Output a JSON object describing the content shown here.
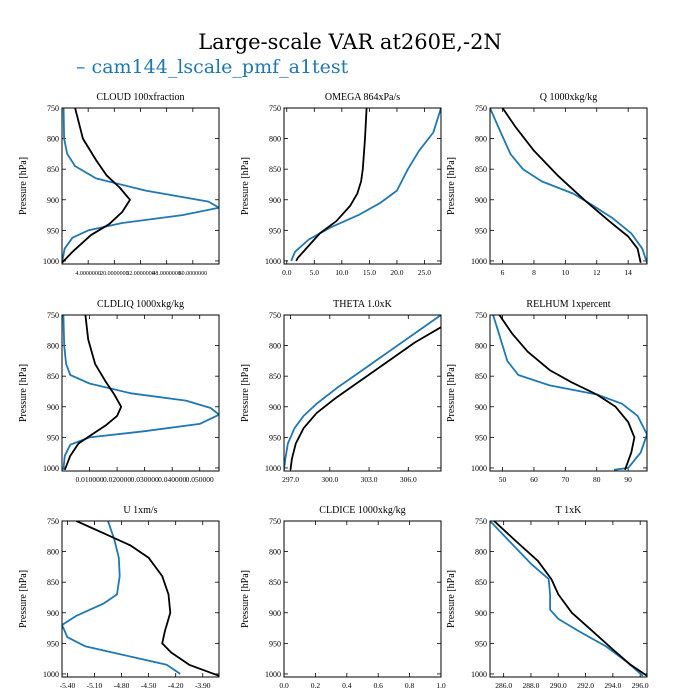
{
  "figure": {
    "title": "Large-scale VAR at260E,-2N",
    "legend": [
      {
        "label": "cam144_lscale_pmf_a1test",
        "color": "#1f77b4"
      }
    ],
    "ref_color": "#000000"
  },
  "chart_data": [
    {
      "type": "line",
      "title": "CLOUD  100xfraction",
      "ylabel": "Pressure [hPa]",
      "ylim": [
        1005,
        750
      ],
      "yticks": [
        750,
        800,
        850,
        900,
        950,
        1000
      ],
      "xlim": [
        0.0,
        6.0
      ],
      "xticks": [
        1.0,
        2.0,
        3.0,
        4.0,
        5.0
      ],
      "xtick_labels": [
        "4.0000000",
        "20.0000000",
        "32.0000000",
        "48.0000000",
        "60.0000000"
      ],
      "xtick_label_size": 6,
      "series": [
        {
          "name": "cam144_lscale_pmf_a1test",
          "color": "#1f77b4",
          "points": [
            [
              0.06,
              750
            ],
            [
              0.08,
              800
            ],
            [
              0.2,
              825
            ],
            [
              0.5,
              845
            ],
            [
              1.3,
              865
            ],
            [
              3.2,
              885
            ],
            [
              5.6,
              903
            ],
            [
              6.0,
              913
            ],
            [
              4.6,
              925
            ],
            [
              2.3,
              938
            ],
            [
              1.0,
              950
            ],
            [
              0.4,
              962
            ],
            [
              0.1,
              980
            ],
            [
              0.0,
              1003
            ]
          ]
        },
        {
          "name": "ref",
          "color": "#000000",
          "points": [
            [
              0.5,
              750
            ],
            [
              0.8,
              800
            ],
            [
              1.3,
              835
            ],
            [
              1.7,
              860
            ],
            [
              2.2,
              880
            ],
            [
              2.6,
              900
            ],
            [
              2.3,
              920
            ],
            [
              1.8,
              940
            ],
            [
              1.1,
              958
            ],
            [
              0.4,
              985
            ],
            [
              0.0,
              1003
            ]
          ]
        }
      ]
    },
    {
      "type": "line",
      "title": "OMEGA  864xPa/s",
      "ylabel": "Pressure [hPa]",
      "ylim": [
        1005,
        750
      ],
      "yticks": [
        750,
        800,
        850,
        900,
        950,
        1000
      ],
      "xlim": [
        -0.5,
        28.0
      ],
      "xticks": [
        0.0,
        5.0,
        10.0,
        15.0,
        20.0,
        25.0
      ],
      "xtick_labels": [
        "0.0",
        "5.0",
        "10.0",
        "15.0",
        "20.0",
        "25.0"
      ],
      "series": [
        {
          "name": "cam144_lscale_pmf_a1test",
          "color": "#1f77b4",
          "points": [
            [
              28.0,
              750
            ],
            [
              26.6,
              790
            ],
            [
              24.0,
              820
            ],
            [
              22.0,
              850
            ],
            [
              20.0,
              885
            ],
            [
              17.0,
              905
            ],
            [
              13.0,
              925
            ],
            [
              8.0,
              945
            ],
            [
              4.0,
              965
            ],
            [
              1.5,
              985
            ],
            [
              0.8,
              1000
            ]
          ]
        },
        {
          "name": "ref",
          "color": "#000000",
          "points": [
            [
              14.5,
              750
            ],
            [
              14.2,
              800
            ],
            [
              13.8,
              850
            ],
            [
              13.5,
              870
            ],
            [
              12.8,
              890
            ],
            [
              11.5,
              910
            ],
            [
              9.0,
              935
            ],
            [
              6.0,
              955
            ],
            [
              4.0,
              975
            ],
            [
              2.0,
              995
            ],
            [
              1.7,
              1000
            ]
          ]
        }
      ]
    },
    {
      "type": "line",
      "title": "Q  1000xkg/kg",
      "ylabel": "Pressure [hPa]",
      "ylim": [
        1005,
        750
      ],
      "yticks": [
        750,
        800,
        850,
        900,
        950,
        1000
      ],
      "xlim": [
        5.2,
        15.2
      ],
      "xticks": [
        6,
        8,
        10,
        12,
        14
      ],
      "xtick_labels": [
        "6",
        "8",
        "10",
        "12",
        "14"
      ],
      "series": [
        {
          "name": "cam144_lscale_pmf_a1test",
          "color": "#1f77b4",
          "points": [
            [
              5.2,
              750
            ],
            [
              5.8,
              785
            ],
            [
              6.5,
              825
            ],
            [
              7.3,
              850
            ],
            [
              8.5,
              870
            ],
            [
              10.5,
              890
            ],
            [
              11.8,
              910
            ],
            [
              13.0,
              930
            ],
            [
              14.2,
              955
            ],
            [
              14.9,
              980
            ],
            [
              15.2,
              1003
            ]
          ]
        },
        {
          "name": "ref",
          "color": "#000000",
          "points": [
            [
              6.0,
              750
            ],
            [
              6.8,
              780
            ],
            [
              8.0,
              820
            ],
            [
              9.5,
              860
            ],
            [
              11.2,
              900
            ],
            [
              12.8,
              935
            ],
            [
              14.0,
              960
            ],
            [
              14.6,
              980
            ],
            [
              14.8,
              1003
            ]
          ]
        }
      ]
    },
    {
      "type": "line",
      "title": "CLDLIQ  1000xkg/kg",
      "ylabel": "Pressure [hPa]",
      "ylim": [
        1005,
        750
      ],
      "yticks": [
        750,
        800,
        850,
        900,
        950,
        1000
      ],
      "xlim": [
        0.0,
        0.057
      ],
      "xticks": [
        0.01,
        0.02,
        0.03,
        0.04,
        0.05
      ],
      "xtick_labels": [
        "0.010000",
        "0.020000",
        "0.030000",
        "0.040000",
        "0.050000"
      ],
      "series": [
        {
          "name": "cam144_lscale_pmf_a1test",
          "color": "#1f77b4",
          "points": [
            [
              0.0005,
              750
            ],
            [
              0.0008,
              800
            ],
            [
              0.0015,
              830
            ],
            [
              0.003,
              848
            ],
            [
              0.01,
              862
            ],
            [
              0.025,
              878
            ],
            [
              0.045,
              890
            ],
            [
              0.054,
              902
            ],
            [
              0.057,
              913
            ],
            [
              0.05,
              928
            ],
            [
              0.03,
              940
            ],
            [
              0.01,
              950
            ],
            [
              0.003,
              962
            ],
            [
              0.001,
              980
            ],
            [
              0.0005,
              1003
            ]
          ]
        },
        {
          "name": "ref",
          "color": "#000000",
          "points": [
            [
              0.0085,
              750
            ],
            [
              0.0095,
              790
            ],
            [
              0.012,
              830
            ],
            [
              0.016,
              860
            ],
            [
              0.019,
              880
            ],
            [
              0.0215,
              900
            ],
            [
              0.02,
              915
            ],
            [
              0.016,
              930
            ],
            [
              0.011,
              945
            ],
            [
              0.006,
              960
            ],
            [
              0.003,
              980
            ],
            [
              0.001,
              1003
            ]
          ]
        }
      ]
    },
    {
      "type": "line",
      "title": "THETA  1.0xK",
      "ylabel": "Pressure [hPa]",
      "ylim": [
        1005,
        750
      ],
      "yticks": [
        750,
        800,
        850,
        900,
        950,
        1000
      ],
      "xlim": [
        296.5,
        308.5
      ],
      "xticks": [
        297.0,
        300.0,
        303.0,
        306.0
      ],
      "xtick_labels": [
        "297.0",
        "300.0",
        "303.0",
        "306.0"
      ],
      "series": [
        {
          "name": "cam144_lscale_pmf_a1test",
          "color": "#1f77b4",
          "points": [
            [
              308.5,
              750
            ],
            [
              306.5,
              780
            ],
            [
              304.5,
              810
            ],
            [
              302.5,
              840
            ],
            [
              300.5,
              870
            ],
            [
              299.0,
              895
            ],
            [
              298.0,
              915
            ],
            [
              297.3,
              935
            ],
            [
              296.8,
              960
            ],
            [
              296.6,
              985
            ],
            [
              296.5,
              1003
            ]
          ]
        },
        {
          "name": "ref",
          "color": "#000000",
          "points": [
            [
              308.5,
              770
            ],
            [
              306.5,
              795
            ],
            [
              304.5,
              825
            ],
            [
              302.5,
              855
            ],
            [
              300.5,
              885
            ],
            [
              299.0,
              910
            ],
            [
              298.0,
              935
            ],
            [
              297.4,
              960
            ],
            [
              297.1,
              985
            ],
            [
              297.0,
              1003
            ]
          ]
        }
      ]
    },
    {
      "type": "line",
      "title": "RELHUM  1xpercent",
      "ylabel": "Pressure [hPa]",
      "ylim": [
        1005,
        750
      ],
      "yticks": [
        750,
        800,
        850,
        900,
        950,
        1000
      ],
      "xlim": [
        46.0,
        96.0
      ],
      "xticks": [
        50,
        60,
        70,
        80,
        90
      ],
      "xtick_labels": [
        "50",
        "60",
        "70",
        "80",
        "90"
      ],
      "series": [
        {
          "name": "cam144_lscale_pmf_a1test",
          "color": "#1f77b4",
          "points": [
            [
              47.0,
              750
            ],
            [
              48.5,
              775
            ],
            [
              50.0,
              800
            ],
            [
              51.5,
              825
            ],
            [
              55.0,
              848
            ],
            [
              65.0,
              865
            ],
            [
              80.0,
              880
            ],
            [
              88.0,
              895
            ],
            [
              93.0,
              915
            ],
            [
              96.0,
              945
            ],
            [
              94.0,
              975
            ],
            [
              90.0,
              1000
            ],
            [
              85.5,
              1003
            ]
          ]
        },
        {
          "name": "ref",
          "color": "#000000",
          "points": [
            [
              49.0,
              750
            ],
            [
              53.0,
              780
            ],
            [
              58.0,
              810
            ],
            [
              65.0,
              840
            ],
            [
              72.0,
              860
            ],
            [
              80.0,
              880
            ],
            [
              86.0,
              900
            ],
            [
              90.0,
              925
            ],
            [
              92.0,
              950
            ],
            [
              91.0,
              975
            ],
            [
              89.0,
              1003
            ]
          ]
        }
      ]
    },
    {
      "type": "line",
      "title": "U  1xm/s",
      "ylabel": "Pressure [hPa]",
      "ylim": [
        1005,
        750
      ],
      "yticks": [
        750,
        800,
        850,
        900,
        950,
        1000
      ],
      "xlim": [
        -5.46,
        -3.72
      ],
      "xticks": [
        -5.4,
        -5.1,
        -4.8,
        -4.5,
        -4.2,
        -3.9
      ],
      "xtick_labels": [
        "-5.40",
        "-5.10",
        "-4.80",
        "-4.50",
        "-4.20",
        "-3.90"
      ],
      "series": [
        {
          "name": "cam144_lscale_pmf_a1test",
          "color": "#1f77b4",
          "points": [
            [
              -4.95,
              750
            ],
            [
              -4.88,
              780
            ],
            [
              -4.83,
              810
            ],
            [
              -4.82,
              840
            ],
            [
              -4.85,
              870
            ],
            [
              -5.0,
              885
            ],
            [
              -5.3,
              905
            ],
            [
              -5.46,
              920
            ],
            [
              -5.4,
              940
            ],
            [
              -5.2,
              955
            ],
            [
              -4.9,
              965
            ],
            [
              -4.6,
              975
            ],
            [
              -4.3,
              985
            ],
            [
              -4.15,
              1000
            ]
          ]
        },
        {
          "name": "ref",
          "color": "#000000",
          "points": [
            [
              -5.3,
              750
            ],
            [
              -5.0,
              770
            ],
            [
              -4.7,
              790
            ],
            [
              -4.5,
              810
            ],
            [
              -4.35,
              840
            ],
            [
              -4.28,
              870
            ],
            [
              -4.26,
              900
            ],
            [
              -4.32,
              930
            ],
            [
              -4.35,
              950
            ],
            [
              -4.25,
              965
            ],
            [
              -4.05,
              985
            ],
            [
              -3.72,
              1003
            ]
          ]
        }
      ]
    },
    {
      "type": "line",
      "title": "CLDICE  1000xkg/kg",
      "ylabel": "Pressure [hPa]",
      "ylim": [
        1005,
        750
      ],
      "yticks": [
        750,
        800,
        850,
        900,
        950,
        1000
      ],
      "xlim": [
        0.0,
        1.0
      ],
      "xticks": [
        0.0,
        0.2,
        0.4,
        0.6,
        0.8,
        1.0
      ],
      "xtick_labels": [
        "0.0",
        "0.2",
        "0.4",
        "0.6",
        "0.8",
        "1.0"
      ],
      "series": []
    },
    {
      "type": "line",
      "title": "T  1xK",
      "ylabel": "Pressure [hPa]",
      "ylim": [
        1005,
        750
      ],
      "yticks": [
        750,
        800,
        850,
        900,
        950,
        1000
      ],
      "xlim": [
        285.0,
        296.5
      ],
      "xticks": [
        286.0,
        288.0,
        290.0,
        292.0,
        294.0,
        296.0
      ],
      "xtick_labels": [
        "286.0",
        "288.0",
        "290.0",
        "292.0",
        "294.0",
        "296.0"
      ],
      "series": [
        {
          "name": "cam144_lscale_pmf_a1test",
          "color": "#1f77b4",
          "points": [
            [
              285.0,
              750
            ],
            [
              286.5,
              785
            ],
            [
              288.0,
              820
            ],
            [
              289.3,
              845
            ],
            [
              289.4,
              870
            ],
            [
              289.4,
              895
            ],
            [
              290.0,
              910
            ],
            [
              291.5,
              930
            ],
            [
              293.5,
              955
            ],
            [
              295.0,
              980
            ],
            [
              296.2,
              1003
            ]
          ]
        },
        {
          "name": "ref",
          "color": "#000000",
          "points": [
            [
              285.3,
              750
            ],
            [
              287.0,
              785
            ],
            [
              288.5,
              815
            ],
            [
              289.5,
              845
            ],
            [
              290.0,
              870
            ],
            [
              291.0,
              900
            ],
            [
              292.5,
              930
            ],
            [
              294.0,
              960
            ],
            [
              295.3,
              985
            ],
            [
              296.5,
              1003
            ]
          ]
        }
      ]
    }
  ]
}
